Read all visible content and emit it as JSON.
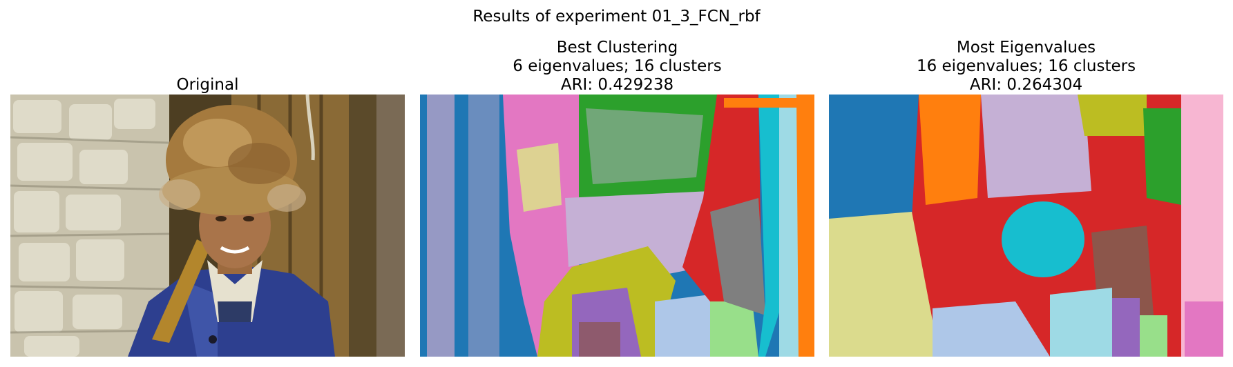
{
  "figure": {
    "suptitle": "Results of experiment 01_3_FCN_rbf"
  },
  "panels": [
    {
      "title_lines": [
        "Original"
      ],
      "image": "photo of a man wearing a fur hat and blue jacket in front of a stone wall and wooden door"
    },
    {
      "title_lines": [
        "Best Clustering",
        "6 eigenvalues; 16 clusters",
        "ARI: 0.429238"
      ],
      "image": "segmentation map"
    },
    {
      "title_lines": [
        "Most Eigenvalues",
        "16 eigenvalues; 16 clusters",
        "ARI: 0.264304"
      ],
      "image": "segmentation map"
    }
  ],
  "palette": {
    "blue": "#1f77b4",
    "orange": "#ff7f0e",
    "green": "#2ca02c",
    "red": "#d62728",
    "purple": "#9467bd",
    "brown": "#8c564b",
    "pink": "#e377c2",
    "gray": "#7f7f7f",
    "olive": "#bcbd22",
    "cyan": "#17becf",
    "light_blue": "#aec7e8",
    "light_green": "#98df8a",
    "light_purple": "#c5b0d5",
    "light_pink": "#f7b6d2",
    "light_olive": "#dbdb8d",
    "light_cyan": "#9edae5"
  }
}
